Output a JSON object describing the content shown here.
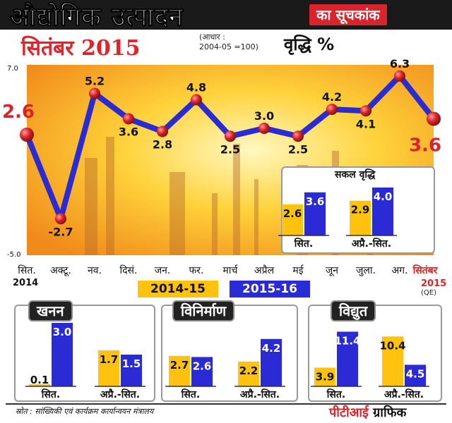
{
  "header": {
    "title": "औद्योगिक उत्पादन",
    "subtitle": "का सूचकांक",
    "month": "सितंबर 2015",
    "base_line1": "(आधार :",
    "base_line2": "2004-05 =100)",
    "growth_label": "वृद्धि %"
  },
  "chart_data": [
    {
      "type": "line",
      "categories": [
        "सित.",
        "अक्टू.",
        "नव.",
        "दिसं.",
        "जन.",
        "फर.",
        "मार्च",
        "अप्रैल",
        "मई",
        "जून",
        "जुला.",
        "अग.",
        "सितंबर"
      ],
      "values": [
        2.6,
        -2.7,
        5.2,
        3.6,
        2.8,
        4.8,
        2.5,
        3.0,
        2.5,
        4.2,
        4.1,
        6.3,
        3.6
      ],
      "value_labels": [
        "2.6",
        "-2.7",
        "5.2",
        "3.6",
        "2.8",
        "4.8",
        "2.5",
        "3.0",
        "2.5",
        "4.2",
        "4.1",
        "6.3",
        "3.6"
      ],
      "ylim": [
        -5.0,
        7.0
      ],
      "ytick_labels": [
        "7.0",
        "-5.0"
      ],
      "year_start": "2014",
      "year_end": "2015",
      "qe_note": "(QE)",
      "line_color": "#2b2bd6",
      "marker_color": "#d8242a"
    },
    {
      "type": "bar",
      "title": "सकल वृद्धि",
      "categories": [
        "सित.",
        "अप्रै.-सित."
      ],
      "series": [
        {
          "name": "2014-15",
          "values": [
            2.6,
            2.9
          ]
        },
        {
          "name": "2015-16",
          "values": [
            3.6,
            4.0
          ]
        }
      ]
    },
    {
      "type": "bar",
      "title": "खनन",
      "categories": [
        "सित.",
        "अप्रै.-सित."
      ],
      "series": [
        {
          "name": "2014-15",
          "values": [
            0.1,
            1.7
          ]
        },
        {
          "name": "2015-16",
          "values": [
            3.0,
            1.5
          ]
        }
      ]
    },
    {
      "type": "bar",
      "title": "विनिर्माण",
      "categories": [
        "सित.",
        "अप्रै.-सित."
      ],
      "series": [
        {
          "name": "2014-15",
          "values": [
            2.7,
            2.2
          ]
        },
        {
          "name": "2015-16",
          "values": [
            2.6,
            4.2
          ]
        }
      ]
    },
    {
      "type": "bar",
      "title": "विद्युत",
      "categories": [
        "सित.",
        "अप्रै.-सित."
      ],
      "series": [
        {
          "name": "2014-15",
          "values": [
            3.9,
            10.4
          ]
        },
        {
          "name": "2015-16",
          "values": [
            11.4,
            4.5
          ]
        }
      ]
    }
  ],
  "legend": {
    "a": "2014-15",
    "b": "2015-16",
    "color_a": "#ffc20e",
    "color_b": "#2b2bd6"
  },
  "footer": {
    "source": "स्रोत : सांख्यिकी एवं कार्यक्रम कार्यान्वयन मंत्रालय",
    "credit_a": "पीटीआई",
    "credit_b": " ग्राफिक"
  }
}
